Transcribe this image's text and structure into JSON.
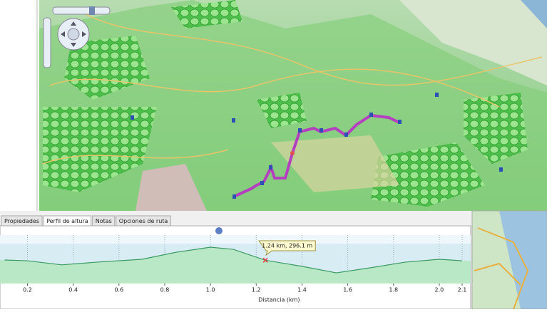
{
  "tabs": [
    "Propiedades",
    "Perfil de altura",
    "Notas",
    "Opciones de ruta"
  ],
  "chart_data": {
    "type": "area",
    "x_label": "Distancia (km)",
    "x": [
      0.1,
      0.2,
      0.35,
      0.5,
      0.7,
      0.85,
      1.0,
      1.1,
      1.24,
      1.4,
      1.55,
      1.7,
      1.85,
      2.0,
      2.1
    ],
    "values": [
      297,
      294,
      277,
      288,
      300,
      329,
      350,
      341,
      296.1,
      271,
      244,
      265,
      288,
      300,
      294
    ],
    "color": "#b9e8c6",
    "xlim": [
      0.08,
      2.1
    ],
    "ylim": [
      200,
      400
    ],
    "xticks": [
      0.2,
      0.4,
      0.6,
      0.8,
      {
        "value": 1,
        "label": "1.0"
      },
      1.2,
      1.4,
      1.6,
      1.8,
      {
        "value": 2,
        "label": "2.0"
      },
      2.1
    ],
    "grid": true,
    "marker": {
      "x": 1.24,
      "value": 296.1,
      "label": "1.24 km, 296.1 m"
    }
  }
}
